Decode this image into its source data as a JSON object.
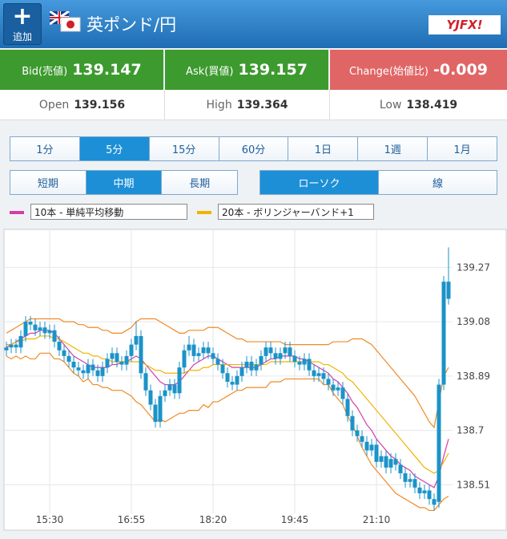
{
  "header": {
    "add_label": "追加",
    "title": "英ポンド/円",
    "logo": "YJFX!"
  },
  "quotes": [
    {
      "label": "Bid(売値)",
      "value": "139.147"
    },
    {
      "label": "Ask(買値)",
      "value": "139.157"
    },
    {
      "label": "Change(始値比)",
      "value": "-0.009"
    }
  ],
  "stats": [
    {
      "label": "Open",
      "value": "139.156"
    },
    {
      "label": "High",
      "value": "139.364"
    },
    {
      "label": "Low",
      "value": "138.419"
    }
  ],
  "periods": {
    "items": [
      "1分",
      "5分",
      "15分",
      "60分",
      "1日",
      "1週",
      "1月"
    ],
    "selected": 1
  },
  "ranges": {
    "items": [
      "短期",
      "中期",
      "長期"
    ],
    "selected": 1
  },
  "styles": {
    "items": [
      "ローソク",
      "線"
    ],
    "selected": 0
  },
  "indicators": [
    {
      "label": "10本 - 単純平均移動",
      "color": "#d63ca8"
    },
    {
      "label": "20本 - ボリンジャーバンド+1",
      "color": "#f0b400"
    }
  ],
  "chart_data": {
    "type": "candlestick",
    "color": "#1b93c8",
    "grid": true,
    "categories": [
      null,
      null,
      null,
      null,
      null,
      null,
      null,
      null,
      null,
      "15:30",
      null,
      null,
      null,
      null,
      null,
      null,
      null,
      null,
      null,
      null,
      null,
      null,
      null,
      null,
      null,
      null,
      "16:55",
      null,
      null,
      null,
      null,
      null,
      null,
      null,
      null,
      null,
      null,
      null,
      null,
      null,
      null,
      null,
      null,
      "18:20",
      null,
      null,
      null,
      null,
      null,
      null,
      null,
      null,
      null,
      null,
      null,
      null,
      null,
      null,
      null,
      null,
      "19:45",
      null,
      null,
      null,
      null,
      null,
      null,
      null,
      null,
      null,
      null,
      null,
      null,
      null,
      null,
      null,
      null,
      "21:10",
      null,
      null,
      null,
      null,
      null,
      null,
      null,
      null,
      null,
      null,
      null,
      null,
      null,
      null,
      null
    ],
    "open": [
      138.98,
      138.99,
      139.0,
      138.99,
      139.03,
      139.08,
      139.07,
      139.05,
      139.06,
      139.04,
      139.05,
      139.01,
      138.98,
      138.96,
      138.94,
      138.92,
      138.91,
      138.9,
      138.93,
      138.91,
      138.89,
      138.92,
      138.95,
      138.97,
      138.94,
      138.93,
      138.96,
      139.0,
      139.03,
      138.9,
      138.84,
      138.79,
      138.73,
      138.82,
      138.84,
      138.86,
      138.83,
      138.92,
      138.98,
      139.0,
      138.96,
      138.97,
      138.99,
      138.97,
      138.95,
      138.93,
      138.9,
      138.87,
      138.86,
      138.89,
      138.92,
      138.94,
      138.91,
      138.93,
      138.96,
      138.99,
      138.97,
      138.95,
      138.97,
      138.99,
      138.96,
      138.94,
      138.93,
      138.95,
      138.91,
      138.89,
      138.9,
      138.88,
      138.86,
      138.84,
      138.85,
      138.81,
      138.75,
      138.7,
      138.68,
      138.66,
      138.63,
      138.65,
      138.59,
      138.61,
      138.57,
      138.6,
      138.58,
      138.55,
      138.52,
      138.53,
      138.5,
      138.48,
      138.49,
      138.46,
      138.45,
      138.86,
      139.22
    ],
    "high": [
      139.01,
      139.02,
      139.02,
      139.05,
      139.1,
      139.1,
      139.09,
      139.08,
      139.08,
      139.07,
      139.07,
      139.03,
      139.0,
      138.98,
      138.96,
      138.94,
      138.93,
      138.95,
      138.95,
      138.93,
      138.94,
      138.97,
      138.99,
      138.99,
      138.96,
      138.98,
      139.02,
      139.08,
      139.05,
      138.92,
      138.86,
      138.81,
      138.84,
      138.86,
      138.88,
      138.88,
      138.94,
      139.0,
      139.03,
      139.02,
      138.99,
      139.01,
      139.01,
      138.99,
      138.97,
      138.95,
      138.92,
      138.89,
      138.91,
      138.94,
      138.96,
      138.96,
      138.95,
      138.98,
      139.01,
      139.01,
      138.99,
      138.99,
      139.01,
      139.01,
      138.98,
      138.96,
      138.97,
      138.97,
      138.93,
      138.92,
      138.92,
      138.9,
      138.88,
      138.87,
      138.87,
      138.83,
      138.77,
      138.72,
      138.7,
      138.68,
      138.67,
      138.67,
      138.63,
      138.63,
      138.62,
      138.62,
      138.6,
      138.57,
      138.55,
      138.55,
      138.52,
      138.51,
      138.51,
      138.48,
      138.88,
      139.24,
      139.34
    ],
    "low": [
      138.96,
      138.97,
      138.97,
      138.97,
      139.01,
      139.05,
      139.03,
      139.03,
      139.02,
      139.02,
      138.99,
      138.96,
      138.94,
      138.92,
      138.9,
      138.89,
      138.88,
      138.88,
      138.89,
      138.87,
      138.87,
      138.9,
      138.93,
      138.92,
      138.91,
      138.91,
      138.94,
      138.98,
      138.88,
      138.82,
      138.77,
      138.71,
      138.71,
      138.8,
      138.82,
      138.81,
      138.81,
      138.9,
      138.96,
      138.94,
      138.94,
      138.95,
      138.95,
      138.93,
      138.91,
      138.88,
      138.85,
      138.84,
      138.84,
      138.87,
      138.9,
      138.89,
      138.89,
      138.91,
      138.94,
      138.95,
      138.93,
      138.93,
      138.95,
      138.94,
      138.92,
      138.91,
      138.91,
      138.89,
      138.87,
      138.87,
      138.86,
      138.84,
      138.82,
      138.82,
      138.79,
      138.73,
      138.68,
      138.66,
      138.64,
      138.61,
      138.61,
      138.57,
      138.57,
      138.55,
      138.55,
      138.56,
      138.53,
      138.5,
      138.5,
      138.48,
      138.46,
      138.46,
      138.44,
      138.42,
      138.43,
      138.84,
      139.14
    ],
    "close": [
      138.99,
      139.0,
      138.99,
      139.03,
      139.08,
      139.07,
      139.05,
      139.06,
      139.04,
      139.05,
      139.01,
      138.98,
      138.96,
      138.94,
      138.92,
      138.91,
      138.9,
      138.93,
      138.91,
      138.89,
      138.92,
      138.95,
      138.97,
      138.94,
      138.93,
      138.96,
      139.0,
      139.03,
      138.9,
      138.84,
      138.79,
      138.73,
      138.82,
      138.84,
      138.86,
      138.83,
      138.92,
      138.98,
      139.0,
      138.96,
      138.97,
      138.99,
      138.97,
      138.95,
      138.93,
      138.9,
      138.87,
      138.86,
      138.89,
      138.92,
      138.94,
      138.91,
      138.93,
      138.96,
      138.99,
      138.97,
      138.95,
      138.97,
      138.99,
      138.96,
      138.94,
      138.93,
      138.95,
      138.91,
      138.89,
      138.9,
      138.88,
      138.86,
      138.84,
      138.85,
      138.81,
      138.75,
      138.7,
      138.68,
      138.66,
      138.63,
      138.65,
      138.59,
      138.61,
      138.57,
      138.6,
      138.58,
      138.55,
      138.52,
      138.53,
      138.5,
      138.48,
      138.49,
      138.46,
      138.44,
      138.86,
      139.22,
      139.16
    ],
    "lines": [
      {
        "color": "#d63ca8",
        "values": [
          138.99,
          139.0,
          139.01,
          139.02,
          139.03,
          139.04,
          139.04,
          139.05,
          139.05,
          139.05,
          139.04,
          139.02,
          139.0,
          138.98,
          138.96,
          138.95,
          138.94,
          138.93,
          138.92,
          138.92,
          138.92,
          138.92,
          138.93,
          138.93,
          138.94,
          138.94,
          138.95,
          138.96,
          138.95,
          138.93,
          138.91,
          138.89,
          138.87,
          138.86,
          138.86,
          138.86,
          138.87,
          138.89,
          138.91,
          138.93,
          138.94,
          138.95,
          138.96,
          138.96,
          138.95,
          138.94,
          138.93,
          138.92,
          138.92,
          138.92,
          138.92,
          138.92,
          138.92,
          138.93,
          138.94,
          138.95,
          138.95,
          138.96,
          138.96,
          138.96,
          138.96,
          138.95,
          138.95,
          138.94,
          138.93,
          138.92,
          138.91,
          138.9,
          138.88,
          138.87,
          138.85,
          138.83,
          138.8,
          138.78,
          138.75,
          138.72,
          138.7,
          138.67,
          138.65,
          138.63,
          138.61,
          138.6,
          138.58,
          138.57,
          138.56,
          138.54,
          138.53,
          138.52,
          138.51,
          138.5,
          138.54,
          138.61,
          138.67
        ]
      },
      {
        "color": "#f0b400",
        "values": [
          139.0,
          139.0,
          139.01,
          139.01,
          139.02,
          139.02,
          139.02,
          139.03,
          139.03,
          139.03,
          139.02,
          139.02,
          139.01,
          139.0,
          138.99,
          138.98,
          138.97,
          138.97,
          138.96,
          138.96,
          138.95,
          138.95,
          138.94,
          138.94,
          138.94,
          138.94,
          138.94,
          138.94,
          138.94,
          138.93,
          138.92,
          138.91,
          138.91,
          138.9,
          138.9,
          138.9,
          138.9,
          138.9,
          138.91,
          138.91,
          138.91,
          138.92,
          138.92,
          138.93,
          138.93,
          138.93,
          138.93,
          138.93,
          138.93,
          138.93,
          138.93,
          138.93,
          138.93,
          138.93,
          138.93,
          138.94,
          138.94,
          138.94,
          138.94,
          138.94,
          138.94,
          138.94,
          138.94,
          138.94,
          138.94,
          138.94,
          138.93,
          138.93,
          138.92,
          138.91,
          138.9,
          138.88,
          138.87,
          138.85,
          138.83,
          138.81,
          138.79,
          138.77,
          138.75,
          138.73,
          138.71,
          138.69,
          138.67,
          138.65,
          138.63,
          138.61,
          138.59,
          138.57,
          138.56,
          138.55,
          138.56,
          138.59,
          138.62
        ]
      },
      {
        "color": "#f08a24",
        "values": [
          139.04,
          139.05,
          139.06,
          139.07,
          139.08,
          139.09,
          139.09,
          139.09,
          139.09,
          139.09,
          139.09,
          139.09,
          139.08,
          139.08,
          139.08,
          139.07,
          139.07,
          139.06,
          139.06,
          139.06,
          139.05,
          139.05,
          139.04,
          139.04,
          139.04,
          139.05,
          139.06,
          139.08,
          139.09,
          139.09,
          139.09,
          139.09,
          139.08,
          139.07,
          139.06,
          139.05,
          139.04,
          139.04,
          139.05,
          139.05,
          139.05,
          139.05,
          139.06,
          139.06,
          139.06,
          139.05,
          139.04,
          139.03,
          139.02,
          139.02,
          139.01,
          139.01,
          139.01,
          139.01,
          139.01,
          139.01,
          139.01,
          139.01,
          139.0,
          139.0,
          139.0,
          139.0,
          139.0,
          139.0,
          139.0,
          139.0,
          139.0,
          139.0,
          139.01,
          139.01,
          139.01,
          139.01,
          139.02,
          139.02,
          139.02,
          139.01,
          139.0,
          138.98,
          138.96,
          138.94,
          138.92,
          138.9,
          138.88,
          138.86,
          138.84,
          138.82,
          138.79,
          138.76,
          138.73,
          138.71,
          138.8,
          138.89,
          138.92
        ]
      },
      {
        "color": "#f08a24",
        "values": [
          138.96,
          138.95,
          138.96,
          138.95,
          138.96,
          138.95,
          138.95,
          138.97,
          138.97,
          138.97,
          138.95,
          138.95,
          138.94,
          138.92,
          138.9,
          138.89,
          138.87,
          138.88,
          138.86,
          138.86,
          138.85,
          138.85,
          138.84,
          138.84,
          138.84,
          138.83,
          138.82,
          138.8,
          138.79,
          138.77,
          138.75,
          138.73,
          138.74,
          138.73,
          138.74,
          138.75,
          138.76,
          138.76,
          138.77,
          138.77,
          138.77,
          138.79,
          138.78,
          138.8,
          138.8,
          138.81,
          138.82,
          138.83,
          138.84,
          138.84,
          138.85,
          138.85,
          138.85,
          138.85,
          138.85,
          138.87,
          138.87,
          138.87,
          138.88,
          138.88,
          138.88,
          138.88,
          138.88,
          138.88,
          138.88,
          138.88,
          138.86,
          138.86,
          138.83,
          138.81,
          138.79,
          138.75,
          138.72,
          138.68,
          138.64,
          138.61,
          138.58,
          138.56,
          138.54,
          138.52,
          138.5,
          138.48,
          138.47,
          138.46,
          138.45,
          138.44,
          138.43,
          138.43,
          138.42,
          138.42,
          138.44,
          138.46,
          138.47
        ]
      }
    ],
    "ylim": [
      138.41,
      139.4
    ],
    "yticks": [
      138.51,
      138.7,
      138.89,
      139.08,
      139.27
    ]
  }
}
